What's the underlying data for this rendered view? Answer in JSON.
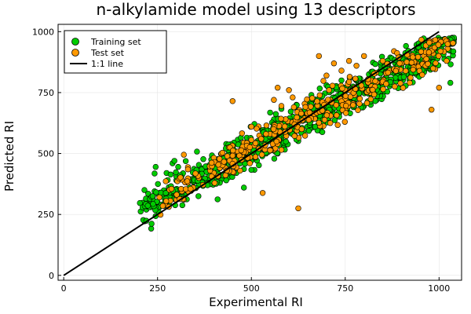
{
  "chart_data": {
    "type": "scatter",
    "title": "n-alkylamide model using 13 descriptors",
    "xlabel": "Experimental RI",
    "ylabel": "Predicted RI",
    "xlim": [
      -15,
      1060
    ],
    "ylim": [
      -20,
      1030
    ],
    "x_ticks": [
      0,
      250,
      500,
      750,
      1000
    ],
    "y_ticks": [
      0,
      250,
      500,
      750,
      1000
    ],
    "grid": true,
    "legend_position": "top-left",
    "colors": {
      "training": "#00cc00",
      "test": "#ff9900",
      "line": "#000000"
    },
    "series": [
      {
        "name": "Training set",
        "kind": "scatter",
        "count": 900,
        "x_range": [
          200,
          1040
        ],
        "trend": "predicted ≈ 0.83 × experimental + 105",
        "points": [
          [
            205,
            262
          ],
          [
            210,
            298
          ],
          [
            215,
            350
          ],
          [
            220,
            270
          ],
          [
            228,
            312
          ],
          [
            232,
            280
          ],
          [
            238,
            325
          ],
          [
            242,
            418
          ],
          [
            245,
            445
          ],
          [
            250,
            300
          ],
          [
            255,
            280
          ],
          [
            260,
            290
          ],
          [
            265,
            330
          ],
          [
            270,
            340
          ],
          [
            290,
            460
          ],
          [
            295,
            470
          ],
          [
            305,
            445
          ],
          [
            330,
            390
          ],
          [
            340,
            395
          ],
          [
            350,
            405
          ],
          [
            360,
            420
          ],
          [
            380,
            395
          ],
          [
            390,
            410
          ],
          [
            410,
            312
          ],
          [
            420,
            395
          ],
          [
            440,
            410
          ],
          [
            460,
            420
          ],
          [
            480,
            360
          ],
          [
            500,
            480
          ],
          [
            520,
            540
          ],
          [
            540,
            600
          ],
          [
            560,
            640
          ],
          [
            580,
            560
          ],
          [
            600,
            620
          ],
          [
            620,
            700
          ],
          [
            640,
            660
          ],
          [
            660,
            740
          ],
          [
            680,
            710
          ],
          [
            700,
            780
          ],
          [
            720,
            730
          ],
          [
            740,
            800
          ],
          [
            760,
            770
          ],
          [
            780,
            800
          ],
          [
            800,
            760
          ],
          [
            820,
            830
          ],
          [
            840,
            800
          ],
          [
            860,
            870
          ],
          [
            880,
            840
          ],
          [
            900,
            890
          ],
          [
            920,
            860
          ],
          [
            940,
            930
          ],
          [
            960,
            900
          ],
          [
            980,
            950
          ],
          [
            1000,
            940
          ],
          [
            1020,
            960
          ],
          [
            1030,
            790
          ],
          [
            1035,
            950
          ],
          [
            1040,
            970
          ]
        ]
      },
      {
        "name": "Test set",
        "kind": "scatter",
        "count": 350,
        "x_range": [
          255,
          1040
        ],
        "trend": "predicted ≈ 0.83 × experimental + 105",
        "points": [
          [
            255,
            320
          ],
          [
            270,
            290
          ],
          [
            300,
            310
          ],
          [
            315,
            345
          ],
          [
            320,
            495
          ],
          [
            330,
            380
          ],
          [
            345,
            360
          ],
          [
            360,
            400
          ],
          [
            400,
            420
          ],
          [
            420,
            500
          ],
          [
            440,
            525
          ],
          [
            450,
            715
          ],
          [
            470,
            430
          ],
          [
            480,
            545
          ],
          [
            500,
            610
          ],
          [
            520,
            520
          ],
          [
            530,
            338
          ],
          [
            540,
            615
          ],
          [
            550,
            580
          ],
          [
            560,
            720
          ],
          [
            570,
            770
          ],
          [
            580,
            695
          ],
          [
            600,
            760
          ],
          [
            610,
            730
          ],
          [
            625,
            275
          ],
          [
            650,
            650
          ],
          [
            680,
            900
          ],
          [
            700,
            820
          ],
          [
            720,
            870
          ],
          [
            740,
            840
          ],
          [
            760,
            880
          ],
          [
            780,
            860
          ],
          [
            800,
            900
          ],
          [
            820,
            800
          ],
          [
            850,
            880
          ],
          [
            880,
            920
          ],
          [
            900,
            870
          ],
          [
            920,
            900
          ],
          [
            940,
            870
          ],
          [
            960,
            900
          ],
          [
            980,
            680
          ],
          [
            1000,
            770
          ],
          [
            1020,
            880
          ]
        ]
      },
      {
        "name": "1:1 line",
        "kind": "line",
        "x": [
          0,
          1000
        ],
        "y": [
          0,
          1000
        ]
      }
    ]
  }
}
